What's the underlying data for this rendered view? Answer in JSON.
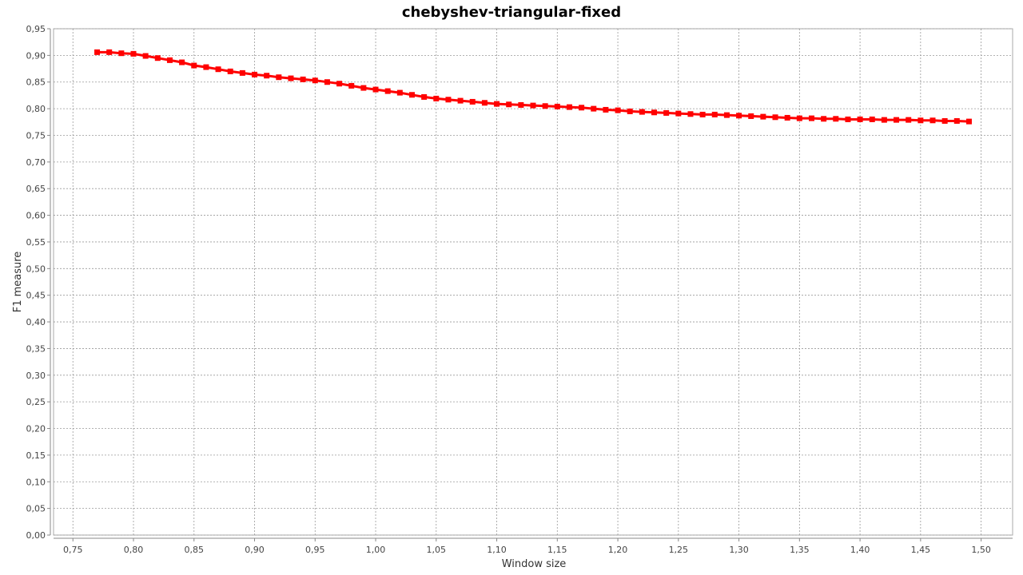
{
  "chart_data": {
    "type": "line",
    "title": "chebyshev-triangular-fixed",
    "xlabel": "Window size",
    "ylabel": "F1 measure",
    "xlim": [
      0.734,
      1.526
    ],
    "ylim": [
      0.0,
      0.95
    ],
    "x_ticks": [
      "0,75",
      "0,80",
      "0,85",
      "0,90",
      "0,95",
      "1,00",
      "1,05",
      "1,10",
      "1,15",
      "1,20",
      "1,25",
      "1,30",
      "1,35",
      "1,40",
      "1,45",
      "1,50"
    ],
    "x_tick_values": [
      0.75,
      0.8,
      0.85,
      0.9,
      0.95,
      1.0,
      1.05,
      1.1,
      1.15,
      1.2,
      1.25,
      1.3,
      1.35,
      1.4,
      1.45,
      1.5
    ],
    "y_ticks": [
      "0,00",
      "0,05",
      "0,10",
      "0,15",
      "0,20",
      "0,25",
      "0,30",
      "0,35",
      "0,40",
      "0,45",
      "0,50",
      "0,55",
      "0,60",
      "0,65",
      "0,70",
      "0,75",
      "0,80",
      "0,85",
      "0,90",
      "0,95"
    ],
    "y_tick_values": [
      0.0,
      0.05,
      0.1,
      0.15,
      0.2,
      0.25,
      0.3,
      0.35,
      0.4,
      0.45,
      0.5,
      0.55,
      0.6,
      0.65,
      0.7,
      0.75,
      0.8,
      0.85,
      0.9,
      0.95
    ],
    "grid": true,
    "series": [
      {
        "color": "#ff0000",
        "x": [
          0.77,
          0.78,
          0.79,
          0.8,
          0.81,
          0.82,
          0.83,
          0.84,
          0.85,
          0.86,
          0.87,
          0.88,
          0.89,
          0.9,
          0.91,
          0.92,
          0.93,
          0.94,
          0.95,
          0.96,
          0.97,
          0.98,
          0.99,
          1.0,
          1.01,
          1.02,
          1.03,
          1.04,
          1.05,
          1.06,
          1.07,
          1.08,
          1.09,
          1.1,
          1.11,
          1.12,
          1.13,
          1.14,
          1.15,
          1.16,
          1.17,
          1.18,
          1.19,
          1.2,
          1.21,
          1.22,
          1.23,
          1.24,
          1.25,
          1.26,
          1.27,
          1.28,
          1.29,
          1.3,
          1.31,
          1.32,
          1.33,
          1.34,
          1.35,
          1.36,
          1.37,
          1.38,
          1.39,
          1.4,
          1.41,
          1.42,
          1.43,
          1.44,
          1.45,
          1.46,
          1.47,
          1.48,
          1.49
        ],
        "y": [
          0.906,
          0.906,
          0.904,
          0.903,
          0.899,
          0.895,
          0.891,
          0.887,
          0.881,
          0.878,
          0.874,
          0.87,
          0.867,
          0.864,
          0.862,
          0.859,
          0.857,
          0.855,
          0.853,
          0.85,
          0.847,
          0.843,
          0.839,
          0.836,
          0.833,
          0.83,
          0.826,
          0.822,
          0.819,
          0.817,
          0.815,
          0.813,
          0.811,
          0.809,
          0.808,
          0.807,
          0.806,
          0.805,
          0.804,
          0.803,
          0.802,
          0.8,
          0.798,
          0.797,
          0.795,
          0.794,
          0.793,
          0.792,
          0.791,
          0.79,
          0.789,
          0.789,
          0.788,
          0.787,
          0.786,
          0.785,
          0.784,
          0.783,
          0.782,
          0.782,
          0.781,
          0.781,
          0.78,
          0.78,
          0.78,
          0.779,
          0.779,
          0.779,
          0.778,
          0.778,
          0.777,
          0.777,
          0.776
        ]
      }
    ],
    "colors": {
      "background": "#ffffff",
      "plot_border": "#aaaaaa",
      "grid": "#999999",
      "series": "#ff0000"
    }
  }
}
